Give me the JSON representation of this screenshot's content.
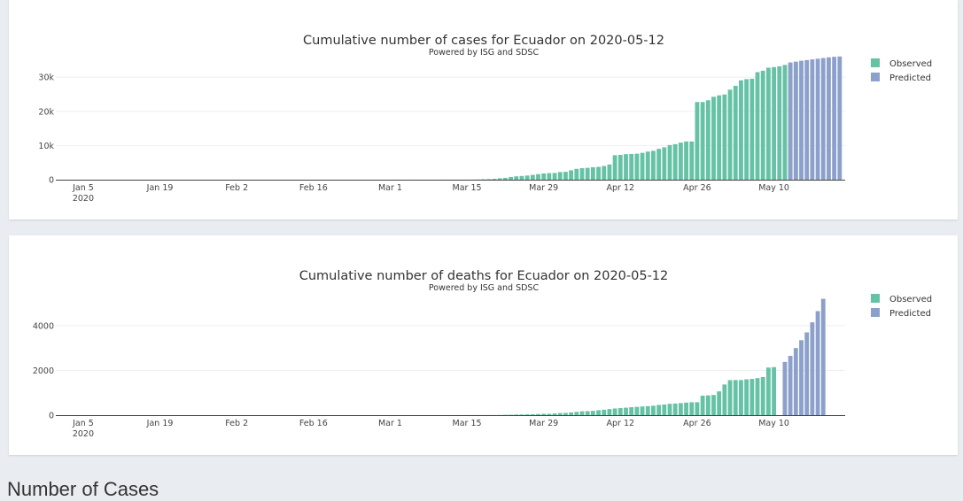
{
  "chart_data": [
    {
      "type": "bar",
      "title": "Cumulative number of cases for Ecuador on 2020-05-12",
      "subtitle": "Powered by ISG and SDSC",
      "x_ticks": [
        {
          "date": "2020-01-05",
          "label": "Jan 5",
          "sub": "2020"
        },
        {
          "date": "2020-01-19",
          "label": "Jan 19"
        },
        {
          "date": "2020-02-02",
          "label": "Feb 2"
        },
        {
          "date": "2020-02-16",
          "label": "Feb 16"
        },
        {
          "date": "2020-03-01",
          "label": "Mar 1"
        },
        {
          "date": "2020-03-15",
          "label": "Mar 15"
        },
        {
          "date": "2020-03-29",
          "label": "Mar 29"
        },
        {
          "date": "2020-04-12",
          "label": "Apr 12"
        },
        {
          "date": "2020-04-26",
          "label": "Apr 26"
        },
        {
          "date": "2020-05-10",
          "label": "May 10"
        }
      ],
      "y_ticks": [
        {
          "value": 0,
          "label": "0"
        },
        {
          "value": 10000,
          "label": "10k"
        },
        {
          "value": 20000,
          "label": "20k"
        },
        {
          "value": 30000,
          "label": "30k"
        }
      ],
      "ylim": [
        0,
        36000
      ],
      "legend_position": "top-right",
      "series": [
        {
          "name": "Observed",
          "color": "#66c2a5",
          "start_date": "2020-01-01",
          "values": [
            0,
            0,
            0,
            0,
            0,
            0,
            0,
            0,
            0,
            0,
            0,
            0,
            0,
            0,
            0,
            0,
            0,
            0,
            0,
            0,
            0,
            0,
            0,
            0,
            0,
            0,
            0,
            0,
            0,
            0,
            0,
            0,
            0,
            0,
            0,
            0,
            0,
            0,
            0,
            0,
            0,
            0,
            0,
            0,
            0,
            0,
            0,
            0,
            0,
            0,
            0,
            0,
            0,
            0,
            0,
            0,
            0,
            0,
            0,
            0,
            1,
            6,
            7,
            10,
            13,
            13,
            14,
            15,
            15,
            17,
            17,
            17,
            17,
            23,
            28,
            37,
            58,
            111,
            168,
            260,
            426,
            532,
            789,
            981,
            1082,
            1211,
            1403,
            1627,
            1823,
            1924,
            1962,
            2240,
            2302,
            2748,
            3163,
            3368,
            3465,
            3646,
            3747,
            3995,
            4450,
            7161,
            7257,
            7466,
            7529,
            7603,
            7858,
            8225,
            8450,
            9022,
            9468,
            10128,
            10398,
            10850,
            11183,
            11183,
            22719,
            22719,
            23240,
            24258,
            24675,
            24934,
            26336,
            27464,
            29071,
            29420,
            29538,
            31467,
            31881,
            32763,
            32947,
            33182,
            33582,
            33830,
            34000
          ]
        },
        {
          "name": "Predicted",
          "color": "#8da0cb",
          "start_date": "2020-05-13",
          "values": [
            34300,
            34550,
            34800,
            35000,
            35200,
            35400,
            35600,
            35800,
            35950,
            36050
          ]
        }
      ]
    },
    {
      "type": "bar",
      "title": "Cumulative number of deaths for Ecuador on 2020-05-12",
      "subtitle": "Powered by ISG and SDSC",
      "x_ticks": [
        {
          "date": "2020-01-05",
          "label": "Jan 5",
          "sub": "2020"
        },
        {
          "date": "2020-01-19",
          "label": "Jan 19"
        },
        {
          "date": "2020-02-02",
          "label": "Feb 2"
        },
        {
          "date": "2020-02-16",
          "label": "Feb 16"
        },
        {
          "date": "2020-03-01",
          "label": "Mar 1"
        },
        {
          "date": "2020-03-15",
          "label": "Mar 15"
        },
        {
          "date": "2020-03-29",
          "label": "Mar 29"
        },
        {
          "date": "2020-04-12",
          "label": "Apr 12"
        },
        {
          "date": "2020-04-26",
          "label": "Apr 26"
        },
        {
          "date": "2020-05-10",
          "label": "May 10"
        }
      ],
      "y_ticks": [
        {
          "value": 0,
          "label": "0"
        },
        {
          "value": 2000,
          "label": "2000"
        },
        {
          "value": 4000,
          "label": "4000"
        }
      ],
      "ylim": [
        0,
        5500
      ],
      "legend_position": "top-right",
      "series": [
        {
          "name": "Observed",
          "color": "#66c2a5",
          "start_date": "2020-01-01",
          "values": [
            0,
            0,
            0,
            0,
            0,
            0,
            0,
            0,
            0,
            0,
            0,
            0,
            0,
            0,
            0,
            0,
            0,
            0,
            0,
            0,
            0,
            0,
            0,
            0,
            0,
            0,
            0,
            0,
            0,
            0,
            0,
            0,
            0,
            0,
            0,
            0,
            0,
            0,
            0,
            0,
            0,
            0,
            0,
            0,
            0,
            0,
            0,
            0,
            0,
            0,
            0,
            0,
            0,
            0,
            0,
            0,
            0,
            0,
            0,
            0,
            0,
            0,
            0,
            0,
            0,
            0,
            0,
            0,
            0,
            0,
            0,
            0,
            2,
            2,
            2,
            3,
            3,
            4,
            5,
            5,
            7,
            14,
            18,
            27,
            28,
            34,
            36,
            48,
            58,
            60,
            75,
            93,
            98,
            120,
            145,
            172,
            180,
            191,
            220,
            242,
            272,
            297,
            315,
            333,
            355,
            369,
            388,
            403,
            421,
            456,
            474,
            507,
            520,
            537,
            560,
            576,
            576,
            871,
            883,
            900,
            1063,
            1371,
            1564,
            1569,
            1569,
            1600,
            1618,
            1654,
            1704,
            2127,
            2145
          ],
          "labels_note": ""
        },
        {
          "name": "Predicted",
          "color": "#8da0cb",
          "start_date": "2020-05-12",
          "values": [
            2380,
            2650,
            3000,
            3350,
            3700,
            4150,
            4650,
            5200
          ]
        }
      ]
    }
  ],
  "next_section_heading": "Number of Cases"
}
